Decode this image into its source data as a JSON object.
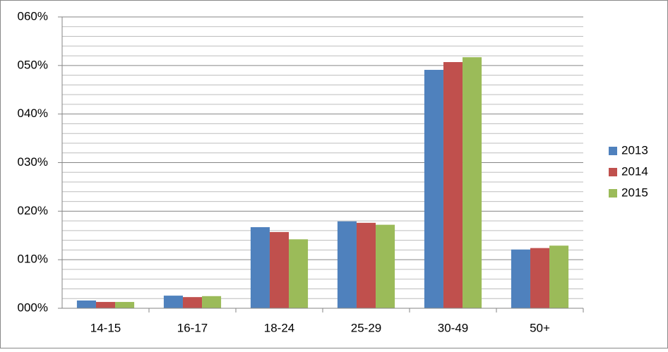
{
  "chart_data": {
    "type": "bar",
    "categories": [
      "14-15",
      "16-17",
      "18-24",
      "25-29",
      "30-49",
      "50+"
    ],
    "series": [
      {
        "name": "2013",
        "color": "#4f81bd",
        "values": [
          1.6,
          2.6,
          16.7,
          17.9,
          49.1,
          12.1
        ]
      },
      {
        "name": "2014",
        "color": "#c0504d",
        "values": [
          1.3,
          2.3,
          15.7,
          17.6,
          50.7,
          12.4
        ]
      },
      {
        "name": "2015",
        "color": "#9bbb59",
        "values": [
          1.3,
          2.5,
          14.2,
          17.2,
          51.7,
          12.9
        ]
      }
    ],
    "ylim": [
      0,
      60
    ],
    "yticks": [
      {
        "value": 0,
        "label": "000%"
      },
      {
        "value": 10,
        "label": "010%"
      },
      {
        "value": 20,
        "label": "020%"
      },
      {
        "value": 30,
        "label": "030%"
      },
      {
        "value": 40,
        "label": "040%"
      },
      {
        "value": 50,
        "label": "050%"
      },
      {
        "value": 60,
        "label": "060%"
      }
    ],
    "grid": true,
    "minor_grid": true,
    "legend": "right"
  }
}
